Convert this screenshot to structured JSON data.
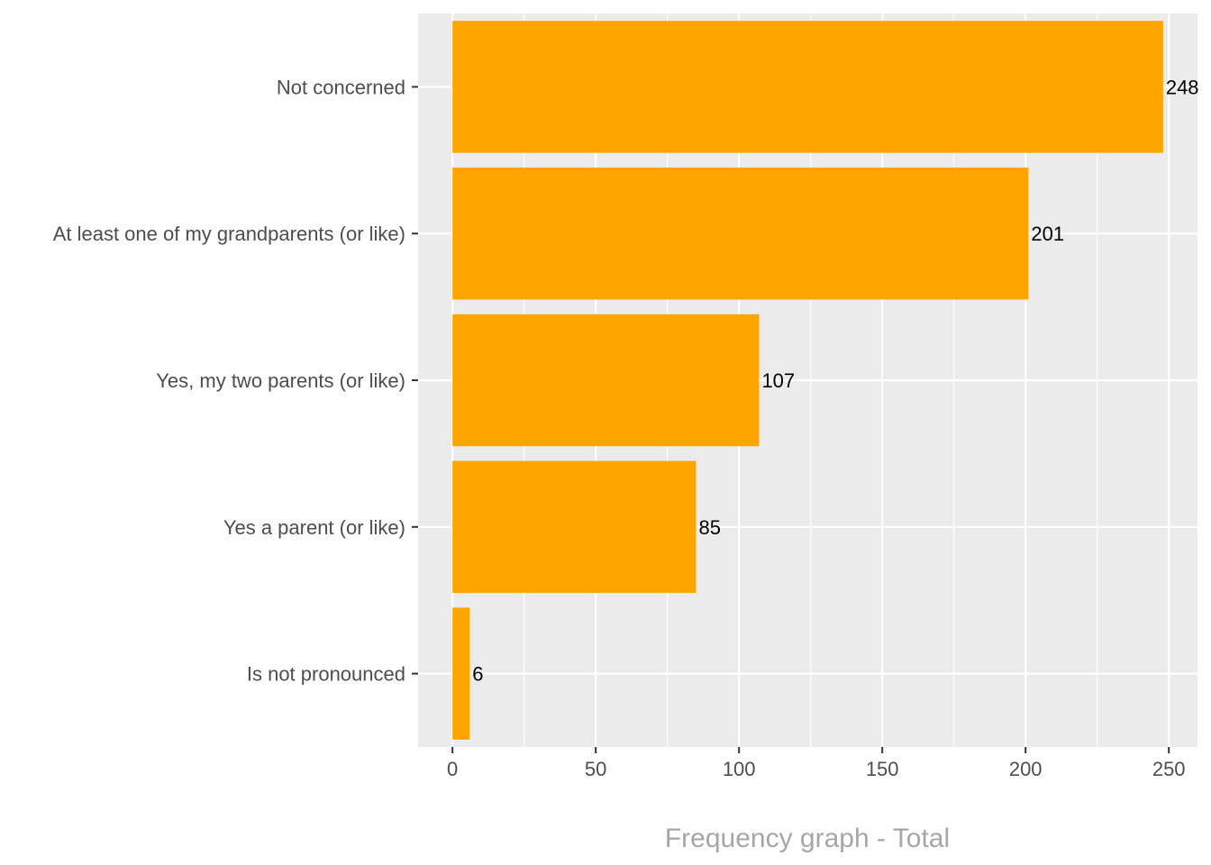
{
  "chart_data": {
    "type": "bar",
    "orientation": "horizontal",
    "categories": [
      "Not concerned",
      "At least one of my grandparents (or like)",
      "Yes, my two parents (or like)",
      "Yes a parent (or like)",
      "Is not pronounced"
    ],
    "values": [
      248,
      201,
      107,
      85,
      6
    ],
    "data_labels": [
      "248",
      "201",
      "107",
      "85",
      "6"
    ],
    "xlabel": "Frequency graph - Total",
    "ylabel": "",
    "title": "",
    "xlim": [
      -12,
      260
    ],
    "xticks": [
      0,
      50,
      100,
      150,
      200,
      250
    ],
    "xtick_labels": [
      "0",
      "50",
      "100",
      "150",
      "200",
      "250"
    ],
    "grid": true,
    "colors": {
      "bar": "#FFA500",
      "panel": "#EBEBEB",
      "grid": "#FFFFFF"
    }
  }
}
